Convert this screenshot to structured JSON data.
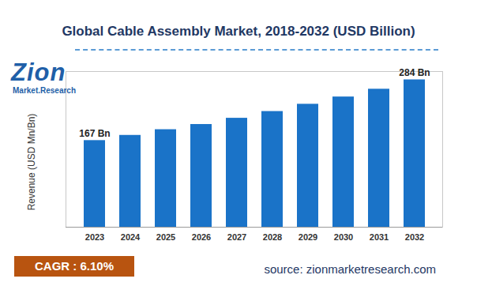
{
  "chart_data": {
    "type": "bar",
    "title": "Global Cable Assembly Market, 2018-2032 (USD Billion)",
    "y_label": "Revenue (USD Mn/Bn)",
    "categories": [
      "2023",
      "2024",
      "2025",
      "2026",
      "2027",
      "2028",
      "2029",
      "2030",
      "2031",
      "2032"
    ],
    "values": [
      167,
      177,
      188,
      198,
      210,
      223,
      237,
      251,
      266,
      284
    ],
    "value_labels": [
      "167 Bn",
      null,
      null,
      null,
      null,
      null,
      null,
      null,
      null,
      "284 Bn"
    ],
    "color": "#1a73c8",
    "ylim": [
      0,
      300
    ],
    "grid": false,
    "data_labels": true,
    "tick_labels": "x",
    "annotations": {
      "logo": "Zion",
      "logo_subtitle": "Market.Research",
      "cagr": "CAGR : 6.10%",
      "source": "source: zionmarketresearch.com"
    }
  }
}
